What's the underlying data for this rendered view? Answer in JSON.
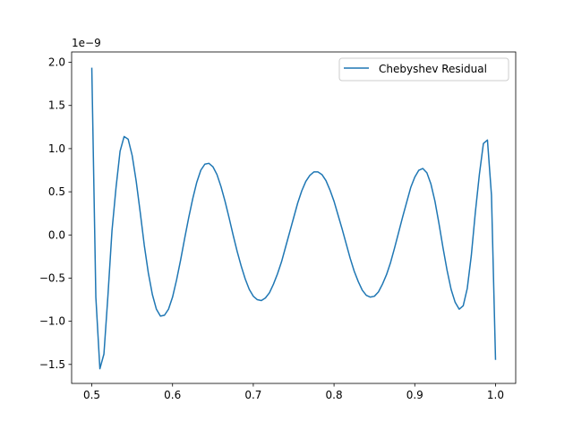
{
  "chart_data": {
    "type": "line",
    "title": "",
    "xlabel": "",
    "ylabel": "",
    "y_offset_label": "1e−9",
    "xlim": [
      0.475,
      1.025
    ],
    "ylim": [
      -1.72,
      2.12
    ],
    "xticks": [
      0.5,
      0.6,
      0.7,
      0.8,
      0.9,
      1.0
    ],
    "xtick_labels": [
      "0.5",
      "0.6",
      "0.7",
      "0.8",
      "0.9",
      "1.0"
    ],
    "yticks": [
      -1.5,
      -1.0,
      -0.5,
      0.0,
      0.5,
      1.0,
      1.5,
      2.0
    ],
    "ytick_labels": [
      "−1.5",
      "−1.0",
      "−0.5",
      "0.0",
      "0.5",
      "1.0",
      "1.5",
      "2.0"
    ],
    "grid": false,
    "legend_position": "upper right",
    "series": [
      {
        "name": "Chebyshev Residual",
        "color": "#1f77b4",
        "x": [
          0.5,
          0.505,
          0.51,
          0.515,
          0.52,
          0.525,
          0.53,
          0.535,
          0.54,
          0.545,
          0.55,
          0.555,
          0.56,
          0.565,
          0.57,
          0.575,
          0.58,
          0.585,
          0.59,
          0.595,
          0.6,
          0.605,
          0.61,
          0.615,
          0.62,
          0.625,
          0.63,
          0.635,
          0.64,
          0.645,
          0.65,
          0.655,
          0.66,
          0.665,
          0.67,
          0.675,
          0.68,
          0.685,
          0.69,
          0.695,
          0.7,
          0.705,
          0.71,
          0.715,
          0.72,
          0.725,
          0.73,
          0.735,
          0.74,
          0.745,
          0.75,
          0.755,
          0.76,
          0.765,
          0.77,
          0.775,
          0.78,
          0.785,
          0.79,
          0.795,
          0.8,
          0.805,
          0.81,
          0.815,
          0.82,
          0.825,
          0.83,
          0.835,
          0.84,
          0.845,
          0.85,
          0.855,
          0.86,
          0.865,
          0.87,
          0.875,
          0.88,
          0.885,
          0.89,
          0.895,
          0.9,
          0.905,
          0.91,
          0.915,
          0.92,
          0.925,
          0.93,
          0.935,
          0.94,
          0.945,
          0.95,
          0.955,
          0.96,
          0.965,
          0.97,
          0.975,
          0.98,
          0.985,
          0.99,
          0.995,
          1.0
        ],
        "y": [
          1.93,
          -0.72,
          -1.55,
          -1.38,
          -0.7,
          0.05,
          0.55,
          0.97,
          1.14,
          1.11,
          0.92,
          0.62,
          0.26,
          -0.12,
          -0.44,
          -0.69,
          -0.86,
          -0.94,
          -0.93,
          -0.86,
          -0.72,
          -0.52,
          -0.29,
          -0.04,
          0.2,
          0.42,
          0.61,
          0.75,
          0.82,
          0.83,
          0.79,
          0.7,
          0.56,
          0.39,
          0.2,
          0.0,
          -0.19,
          -0.36,
          -0.51,
          -0.63,
          -0.71,
          -0.75,
          -0.76,
          -0.73,
          -0.67,
          -0.57,
          -0.45,
          -0.31,
          -0.14,
          0.03,
          0.2,
          0.37,
          0.51,
          0.62,
          0.69,
          0.73,
          0.73,
          0.7,
          0.63,
          0.52,
          0.39,
          0.23,
          0.07,
          -0.1,
          -0.27,
          -0.42,
          -0.54,
          -0.64,
          -0.7,
          -0.72,
          -0.71,
          -0.66,
          -0.57,
          -0.46,
          -0.32,
          -0.15,
          0.03,
          0.21,
          0.38,
          0.55,
          0.67,
          0.75,
          0.77,
          0.72,
          0.59,
          0.39,
          0.13,
          -0.15,
          -0.41,
          -0.63,
          -0.78,
          -0.86,
          -0.82,
          -0.62,
          -0.24,
          0.26,
          0.7,
          1.06,
          1.1,
          0.46,
          -1.44
        ]
      }
    ]
  }
}
